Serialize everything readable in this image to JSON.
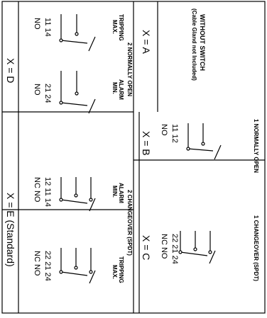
{
  "cells": {
    "a": {
      "option": "X = A",
      "title_line1": "WITHOUT SWITCH",
      "title_line2": "(Cable Gland not Included)"
    },
    "b": {
      "option": "X = B",
      "title": "1 NORMALLY OPEN",
      "terminals": "11  12",
      "contact": "NO"
    },
    "c": {
      "option": "X = C",
      "title": "1 CHANGEOVER (SPDT)",
      "terminals": "22  21  24",
      "contacts": "NC  NO"
    },
    "d": {
      "option": "X = D",
      "title": "2 NORMALLY OPEN",
      "left_label_line1": "TRIPPING",
      "left_label_line2": "MAX.",
      "right_label_line1": "ALARM",
      "right_label_line2": "MIN.",
      "left_terminals": "11  14",
      "left_contact": "NO",
      "right_terminals": "21  24",
      "right_contact": "NO"
    },
    "e": {
      "option": "X = E (Standard)",
      "title": "2 CHANGEOVER (SPDT)",
      "left_label_line1": "ALARM",
      "left_label_line2": "MIN.",
      "right_label_line1": "TRIPPING",
      "right_label_line2": "MAX.",
      "left_terminals": "12  11  14",
      "left_contacts": "NC  NO",
      "right_terminals": "22  21  24",
      "right_contacts": "NC  NO"
    }
  }
}
